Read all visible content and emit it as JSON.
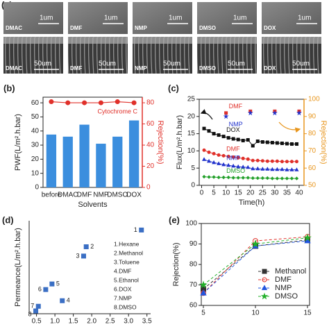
{
  "panel_a": {
    "label": "(a)",
    "surface_scale": "1um",
    "section_scale": "50um",
    "columns": [
      {
        "solvent": "DMAC"
      },
      {
        "solvent": "DMF"
      },
      {
        "solvent": "NMP"
      },
      {
        "solvent": "DMSO"
      },
      {
        "solvent": "DOX"
      }
    ]
  },
  "chart_data": [
    {
      "type": "bar",
      "label": "(b)",
      "categories": [
        "before",
        "DMAC",
        "DMF",
        "NMP",
        "DMSO",
        "DOX"
      ],
      "values": [
        37.5,
        36,
        44.5,
        31,
        36,
        47.5
      ],
      "color": "#3b8ede",
      "y2_values": [
        81,
        80,
        80,
        80,
        81,
        80
      ],
      "y2_color": "#e0302a",
      "annotation": "Cytochrome C",
      "xlabel": "Solvents",
      "ylabel": "PWF(L/m².h.bar)",
      "y2label": "Rejection(%)",
      "ylim": [
        0,
        64
      ],
      "yticks": [
        0,
        10,
        20,
        30,
        40,
        50,
        60
      ],
      "y2lim": [
        0,
        85.3
      ],
      "y2ticks": [
        0,
        20,
        40,
        60,
        80
      ]
    },
    {
      "type": "line",
      "label": "(c)",
      "xlabel": "Time(h)",
      "ylabel": "Flux(L/m².h.bar)",
      "y2label": "Rejection(%)",
      "y2_color": "#e8961e",
      "x": [
        1,
        3,
        5,
        7,
        9,
        11,
        13,
        15,
        17,
        19,
        21,
        23,
        25,
        27,
        29,
        31,
        33,
        35,
        37,
        39
      ],
      "xlim": [
        -1,
        42
      ],
      "xticks": [
        0,
        5,
        10,
        15,
        20,
        25,
        30,
        35,
        40
      ],
      "ylim": [
        0,
        25
      ],
      "yticks": [
        0,
        5,
        10,
        15,
        20,
        25
      ],
      "y2lim": [
        50,
        100
      ],
      "y2ticks": [
        50,
        60,
        70,
        80,
        90,
        100
      ],
      "series": [
        {
          "name": "DOX",
          "color": "#111111",
          "marker": "square",
          "linestyle": "solid",
          "values": [
            16.5,
            15.8,
            15,
            14.6,
            14.2,
            13.8,
            13.5,
            13.3,
            13,
            13.2,
            11.5,
            12.8,
            12.6,
            12.5,
            12.4,
            12.3,
            12.2,
            12.1,
            12,
            12
          ]
        },
        {
          "name": "DMF",
          "color": "#e0302a",
          "marker": "circle",
          "linestyle": "solid",
          "values": [
            10.2,
            9.6,
            9.2,
            8.8,
            8.6,
            8.4,
            8.2,
            8,
            7.8,
            7.6,
            7.2,
            7.2,
            7.1,
            7,
            7,
            7,
            6.9,
            6.9,
            6.9,
            6.9
          ]
        },
        {
          "name": "NMP",
          "color": "#2233cc",
          "marker": "triangle",
          "linestyle": "solid",
          "values": [
            7.5,
            7,
            6.6,
            6.3,
            6,
            5.8,
            5.6,
            5.4,
            5.3,
            5.2,
            4.8,
            4.8,
            4.7,
            4.7,
            4.6,
            4.6,
            4.6,
            4.5,
            4.5,
            4.5
          ]
        },
        {
          "name": "DMSO",
          "color": "#22a02a",
          "marker": "diamond",
          "linestyle": "solid",
          "values": [
            2.5,
            2.4,
            2.4,
            2.3,
            2.3,
            2.3,
            2.2,
            2.2,
            2.2,
            2.2,
            2.1,
            2.1,
            2.1,
            2.1,
            2,
            2,
            2,
            2,
            2,
            2
          ]
        },
        {
          "name": "DMF",
          "color": "#e0302a",
          "marker": "square",
          "linestyle": "none",
          "axis": "y2",
          "x": [
            10,
            20,
            30,
            40
          ],
          "values": [
            92,
            93,
            93,
            93
          ]
        },
        {
          "name": "NMP",
          "color": "#2233cc",
          "marker": "star",
          "linestyle": "none",
          "axis": "y2",
          "x": [
            10,
            20,
            30,
            40
          ],
          "values": [
            90,
            92,
            92,
            92
          ]
        }
      ]
    },
    {
      "type": "scatter",
      "label": "(d)",
      "ylabel": "Permeance(L/m².h.bar)",
      "color": "#3b6fc4",
      "x": [
        3.35,
        1.85,
        1.78,
        1.2,
        0.92,
        0.75,
        0.55,
        0.48
      ],
      "values": [
        45,
        36,
        31,
        7,
        16,
        13,
        4,
        1.5
      ],
      "point_labels": [
        "1",
        "2",
        "3",
        "4",
        "5",
        "6",
        "7",
        "8"
      ],
      "legend_items": [
        "1.Hexane",
        "2.Methanol",
        "3.Toluene",
        "4.DMF",
        "5.Ethanol",
        "6.DOX",
        "7.NMP",
        "8.DMSO"
      ],
      "xlim": [
        0.3,
        3.6
      ],
      "xticks": [
        0.5,
        {
          "value": 1,
          "label": "1.0"
        },
        1.5,
        {
          "value": 2,
          "label": "2.0"
        },
        2.5,
        {
          "value": 3,
          "label": "3.0"
        },
        3.5
      ],
      "ylim": [
        0,
        50
      ]
    },
    {
      "type": "line",
      "label": "(e)",
      "ylabel": "Rejection(%)",
      "legend": "lower right",
      "x": [
        5,
        10,
        15
      ],
      "xlim": [
        4.8,
        15.2
      ],
      "xticks": [
        5,
        10,
        15
      ],
      "ylim": [
        60,
        100
      ],
      "yticks": [
        60,
        70,
        80,
        90,
        100
      ],
      "series": [
        {
          "name": "Methanol",
          "color": "#333333",
          "marker": "square",
          "linestyle": "dashed",
          "values": [
            68,
            89,
            92
          ]
        },
        {
          "name": "DMF",
          "color": "#e0302a",
          "marker": "circle",
          "linestyle": "dashed",
          "values": [
            66,
            91.5,
            93.5
          ]
        },
        {
          "name": "NMP",
          "color": "#2255dd",
          "marker": "triangle",
          "linestyle": "dashed",
          "values": [
            66,
            89,
            91.5
          ]
        },
        {
          "name": "DMSO",
          "color": "#22b02a",
          "marker": "star",
          "linestyle": "dashed",
          "values": [
            70,
            90,
            93
          ]
        }
      ]
    }
  ]
}
